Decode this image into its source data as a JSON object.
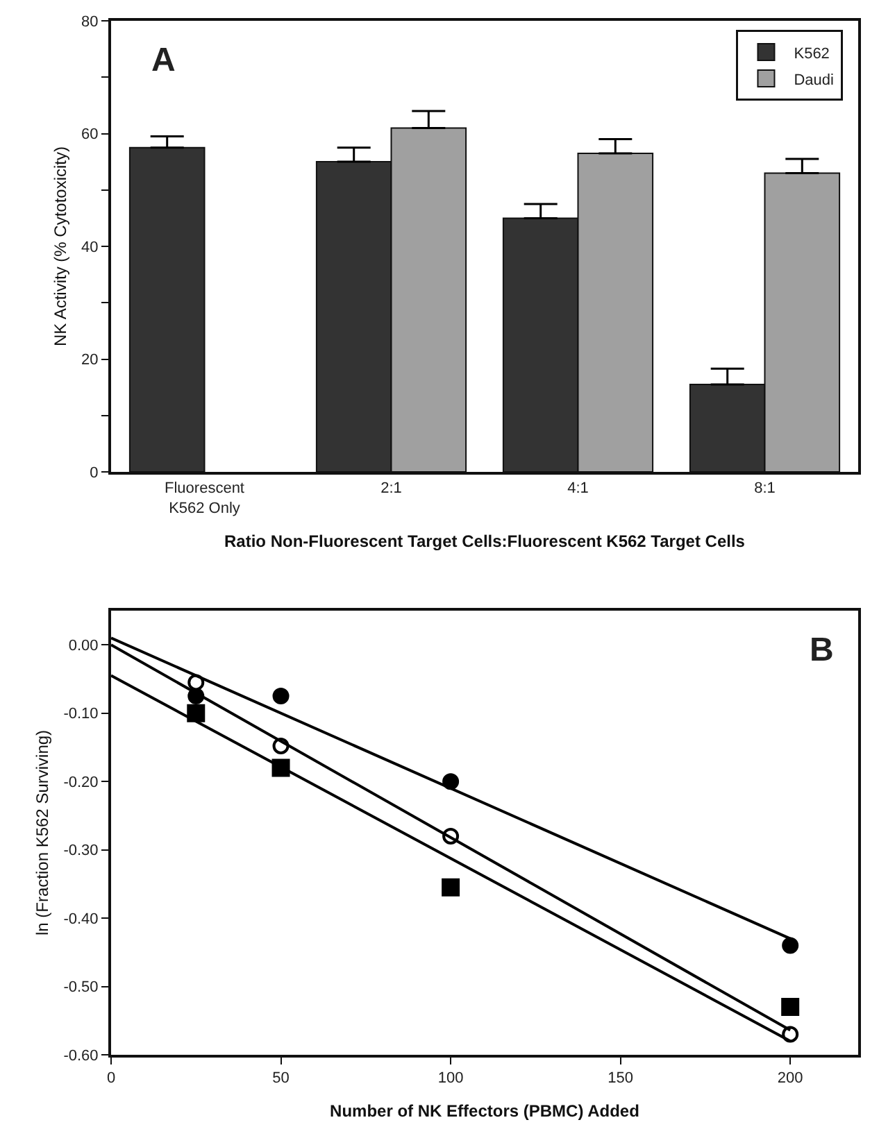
{
  "chart_data": [
    {
      "type": "bar",
      "ylabel": "NK Activity (% Cytotoxicity)",
      "xlabel": "Ratio Non-Fluorescent Target Cells:Fluorescent K562 Target Cells",
      "annotations": [
        "A"
      ],
      "categories": [
        "Fluorescent\nK562 Only",
        "2:1",
        "4:1",
        "8:1"
      ],
      "series": [
        {
          "name": "K562",
          "color": "#333333",
          "values": [
            57.5,
            55,
            45,
            15.5
          ],
          "errors": [
            2,
            2.5,
            2.5,
            2.8
          ]
        },
        {
          "name": "Daudi",
          "color": "#a0a0a0",
          "values": [
            null,
            61,
            56.5,
            53
          ],
          "errors": [
            null,
            3,
            2.5,
            2.5
          ]
        }
      ],
      "ylim": [
        0,
        80
      ],
      "yticks": [
        0,
        {
          "value": 10,
          "label": null
        },
        20,
        {
          "value": 30,
          "label": null
        },
        40,
        {
          "value": 50,
          "label": null
        },
        60,
        {
          "value": 70,
          "label": null
        },
        80
      ],
      "grid": false,
      "legend": "top right"
    },
    {
      "type": "scatter",
      "ylabel": "ln (Fraction K562 Surviving)",
      "xlabel": "Number of NK Effectors (PBMC) Added",
      "annotations": [
        "B"
      ],
      "series": [
        {
          "color": "#000000",
          "marker": "circle",
          "x": [
            25,
            50,
            100,
            200
          ],
          "values": [
            -0.075,
            -0.075,
            -0.2,
            -0.44
          ]
        },
        {
          "color": "#ffffff",
          "marker": "circle",
          "x": [
            25,
            50,
            100,
            200
          ],
          "values": [
            -0.055,
            -0.148,
            -0.28,
            -0.57
          ]
        },
        {
          "color": "#000000",
          "marker": "square",
          "x": [
            25,
            50,
            100,
            200
          ],
          "values": [
            -0.1,
            -0.18,
            -0.355,
            -0.53
          ]
        },
        {
          "type": "line",
          "color": "#000000",
          "marker": "none",
          "x": [
            0,
            200
          ],
          "values": [
            0.01,
            -0.43
          ]
        },
        {
          "type": "line",
          "color": "#000000",
          "marker": "none",
          "x": [
            0,
            200
          ],
          "values": [
            0,
            -0.564
          ]
        },
        {
          "type": "line",
          "color": "#000000",
          "marker": "none",
          "x": [
            0,
            200
          ],
          "values": [
            -0.045,
            -0.58
          ]
        }
      ],
      "xlim": [
        0,
        220
      ],
      "xticks": [
        0,
        50,
        100,
        150,
        200
      ],
      "ylim": [
        -0.6,
        0.05
      ],
      "yticks": [
        {
          "value": 0,
          "label": "0.00"
        },
        {
          "value": -0.1,
          "label": "-0.10"
        },
        {
          "value": -0.2,
          "label": "-0.20"
        },
        {
          "value": -0.3,
          "label": "-0.30"
        },
        {
          "value": -0.4,
          "label": "-0.40"
        },
        {
          "value": -0.5,
          "label": "-0.50"
        },
        {
          "value": -0.6,
          "label": "-0.60"
        }
      ],
      "grid": false
    }
  ]
}
